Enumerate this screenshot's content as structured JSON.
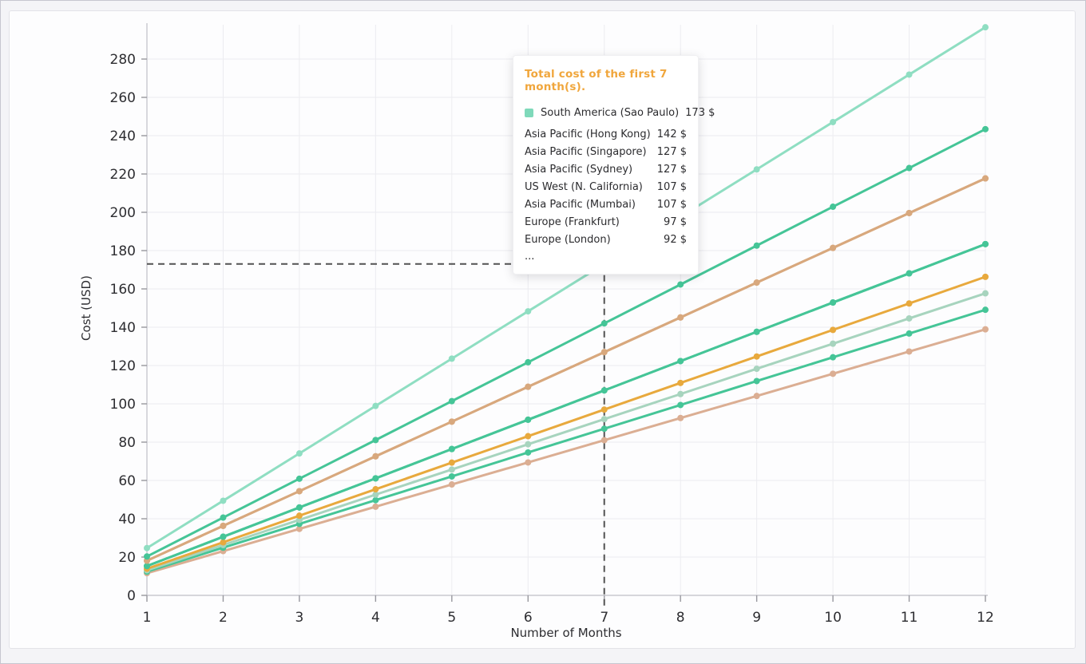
{
  "window": {
    "background_color": "#f4f4f7",
    "card_background": "#fdfdfe"
  },
  "chart_data": {
    "type": "line",
    "title": "",
    "xlabel": "Number of Months",
    "ylabel": "Cost (USD)",
    "x": [
      1,
      2,
      3,
      4,
      5,
      6,
      7,
      8,
      9,
      10,
      11,
      12
    ],
    "x_tick_labels": [
      "1",
      "2",
      "3",
      "4",
      "5",
      "6",
      "7",
      "8",
      "9",
      "10",
      "11",
      "12"
    ],
    "y_ticks": [
      0,
      20,
      40,
      60,
      80,
      100,
      120,
      140,
      160,
      180,
      200,
      220,
      240,
      260,
      280
    ],
    "xlim": [
      1,
      12
    ],
    "ylim": [
      0,
      300
    ],
    "grid": true,
    "legend_position": "none",
    "series": [
      {
        "name": "South America (Sao Paulo)",
        "color": "#8fdec2",
        "values": [
          24.7,
          49.4,
          74.1,
          98.9,
          123.6,
          148.3,
          173,
          197.7,
          222.4,
          247.1,
          271.9,
          296.6
        ]
      },
      {
        "name": "Asia Pacific (Hong Kong)",
        "color": "#45c597",
        "values": [
          20.3,
          40.6,
          60.9,
          81.1,
          101.4,
          121.7,
          142,
          162.3,
          182.6,
          202.9,
          223.1,
          243.4
        ]
      },
      {
        "name": "Asia Pacific (Singapore)",
        "color": "#d8a87d",
        "values": [
          18.1,
          36.3,
          54.4,
          72.6,
          90.7,
          108.9,
          127,
          145.1,
          163.3,
          181.4,
          199.6,
          217.7
        ]
      },
      {
        "name": "Asia Pacific (Sydney)",
        "color": "#d8a87d",
        "values": [
          18.1,
          36.3,
          54.4,
          72.6,
          90.7,
          108.9,
          127,
          145.1,
          163.3,
          181.4,
          199.6,
          217.7
        ]
      },
      {
        "name": "US West (N. California)",
        "color": "#45c597",
        "values": [
          15.3,
          30.6,
          45.9,
          61.1,
          76.4,
          91.7,
          107,
          122.3,
          137.6,
          152.9,
          168.1,
          183.4
        ]
      },
      {
        "name": "Asia Pacific (Mumbai)",
        "color": "#45c597",
        "values": [
          15.3,
          30.6,
          45.9,
          61.1,
          76.4,
          91.7,
          107,
          122.3,
          137.6,
          152.9,
          168.1,
          183.4
        ]
      },
      {
        "name": "Europe (Frankfurt)",
        "color": "#e8a93d",
        "values": [
          13.9,
          27.7,
          41.6,
          55.4,
          69.3,
          83.1,
          97,
          110.9,
          124.7,
          138.6,
          152.4,
          166.3
        ]
      },
      {
        "name": "Europe (London)",
        "color": "#a7d4be",
        "values": [
          13.1,
          26.3,
          39.4,
          52.6,
          65.7,
          78.9,
          92,
          105.1,
          118.3,
          131.4,
          144.6,
          157.7
        ]
      },
      {
        "name": "",
        "color": "#45c597",
        "values": [
          12.4,
          24.9,
          37.3,
          49.7,
          62.1,
          74.6,
          87,
          99.4,
          111.9,
          124.3,
          136.7,
          149.1
        ]
      },
      {
        "name": "",
        "color": "#dbae93",
        "values": [
          11.6,
          23.1,
          34.7,
          46.3,
          57.9,
          69.4,
          81,
          92.6,
          104.1,
          115.7,
          127.3,
          138.9
        ]
      }
    ],
    "crosshair": {
      "x": 7,
      "y": 173,
      "color": "#525252"
    },
    "highlight_point": {
      "x": 7,
      "y": 173,
      "series": "South America (Sao Paulo)",
      "color": "#8fdec2"
    }
  },
  "tooltip": {
    "title": "Total cost of the first 7 month(s).",
    "title_color": "#f0a63c",
    "rows": [
      {
        "label": "South America (Sao Paulo)",
        "value": "173 $",
        "marker": true,
        "marker_color": "#7fd9ba"
      },
      {
        "label": "Asia Pacific (Hong Kong)",
        "value": "142 $",
        "marker": false
      },
      {
        "label": "Asia Pacific (Singapore)",
        "value": "127 $",
        "marker": false
      },
      {
        "label": "Asia Pacific (Sydney)",
        "value": "127 $",
        "marker": false
      },
      {
        "label": "US West (N. California)",
        "value": "107 $",
        "marker": false
      },
      {
        "label": "Asia Pacific (Mumbai)",
        "value": "107 $",
        "marker": false
      },
      {
        "label": "Europe (Frankfurt)",
        "value": "97 $",
        "marker": false
      },
      {
        "label": "Europe (London)",
        "value": "92 $",
        "marker": false
      }
    ],
    "ellipsis": "..."
  },
  "style": {
    "grid_color": "#ececf0",
    "axis_color": "#c9c9cf",
    "tick_color": "#97979e",
    "tick_text_color": "#2d2d31"
  }
}
